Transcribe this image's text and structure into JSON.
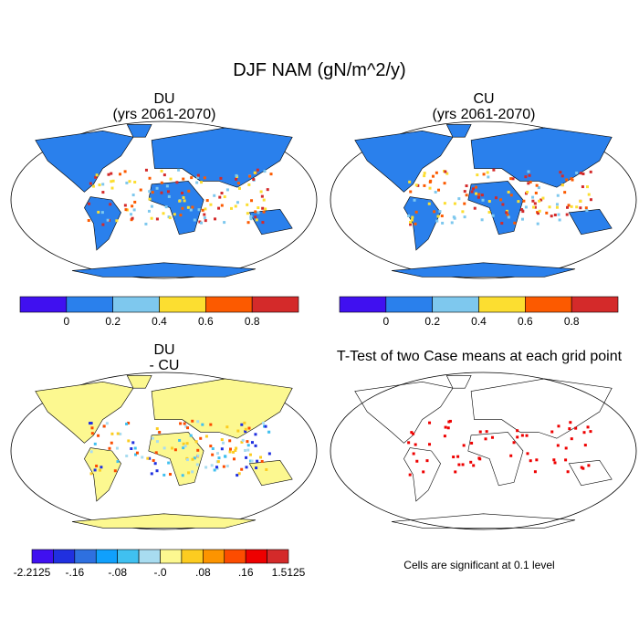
{
  "title": "DJF NAM (gN/m^2/y)",
  "panels": [
    {
      "title": "DU",
      "subtitle": "(yrs 2061-2070)"
    },
    {
      "title": "CU",
      "subtitle": "(yrs 2061-2070)"
    },
    {
      "title": "DU",
      "subtitle": "- CU"
    },
    {
      "title": "T-Test of two Case means at each grid point",
      "subtitle": ""
    }
  ],
  "colorbar_top": {
    "colors": [
      "#4010f0",
      "#2a80ec",
      "#7ec8ee",
      "#fcde30",
      "#fc5a00",
      "#d42a2a"
    ],
    "labels": [
      "0",
      "0.2",
      "0.4",
      "0.6",
      "0.8"
    ]
  },
  "colorbar_diff": {
    "colors": [
      "#4010f0",
      "#2030e0",
      "#2e70e0",
      "#10a0fc",
      "#40c0f0",
      "#a8dcf0",
      "#fcf890",
      "#fccc20",
      "#fc9400",
      "#fc4c00",
      "#ee0000",
      "#d42a2a"
    ],
    "labels": [
      "-2.2125",
      "-.16",
      "-.08",
      "-.0",
      ".08",
      ".16",
      "1.5125"
    ]
  },
  "significance_note": "Cells are significant at 0.1 level"
}
